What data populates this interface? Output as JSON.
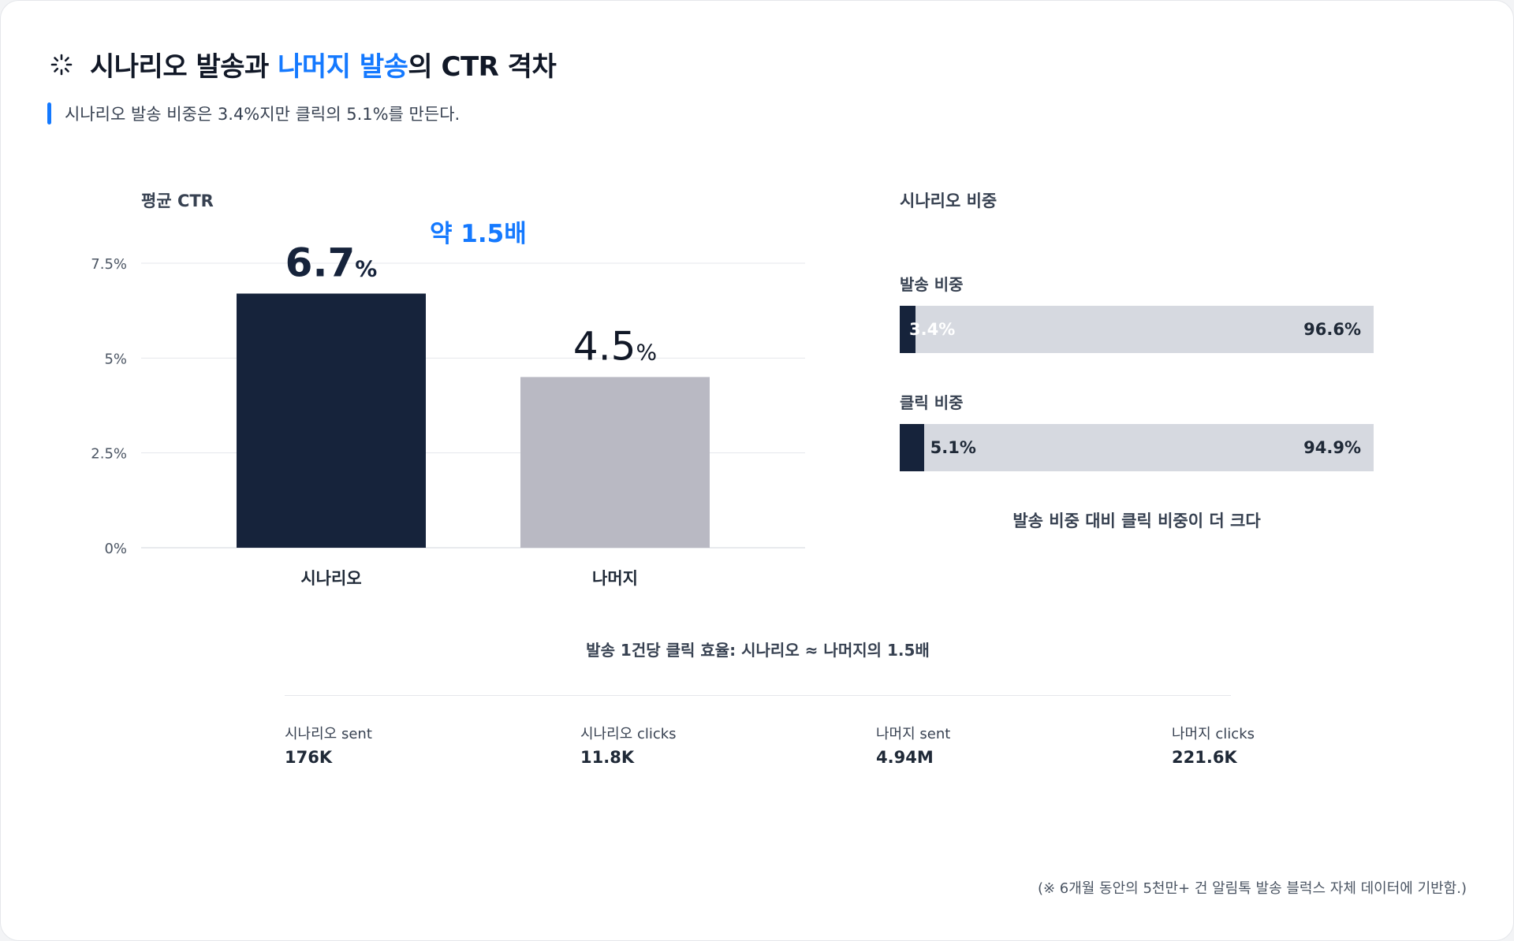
{
  "header": {
    "icon": "loader-icon",
    "title_part1": "시나리오 발송과 ",
    "title_highlight": "나머지 발송",
    "title_part2": "의 CTR 격차",
    "subtitle": "시나리오 발송 비중은 3.4%지만 클릭의 5.1%를 만든다.",
    "accent_color": "#1479ff"
  },
  "ctr_section": {
    "label": "평균 CTR",
    "multiplier": "약 1.5배"
  },
  "share_section": {
    "label": "시나리오 비중",
    "rows": [
      {
        "label": "발송 비중",
        "scenario_pct": 3.4,
        "scenario_text": "3.4%",
        "rest_text": "96.6%"
      },
      {
        "label": "클릭 비중",
        "scenario_pct": 5.1,
        "scenario_text": "5.1%",
        "rest_text": "94.9%"
      }
    ],
    "caption": "발송 비중 대비 클릭 비중이 더 크다"
  },
  "efficiency": "발송 1건당 클릭 효율: 시나리오 ≈ 나머지의 1.5배",
  "stats": [
    {
      "label": "시나리오 sent",
      "value": "176K"
    },
    {
      "label": "시나리오 clicks",
      "value": "11.8K"
    },
    {
      "label": "나머지 sent",
      "value": "4.94M"
    },
    {
      "label": "나머지 clicks",
      "value": "221.6K"
    }
  ],
  "footnote": "(※ 6개월 동안의 5천만+ 건 알림톡 발송 블럭스 자체 데이터에 기반함.)",
  "chart_data": {
    "type": "bar",
    "categories": [
      "시나리오",
      "나머지"
    ],
    "values": [
      6.7,
      4.5
    ],
    "value_labels": [
      "6.7",
      "4.5"
    ],
    "value_unit": "%",
    "ylim": [
      0,
      8
    ],
    "yticks": [
      0,
      2.5,
      5,
      7.5
    ],
    "ytick_labels": [
      "0%",
      "2.5%",
      "5%",
      "7.5%"
    ],
    "colors": [
      "#16233b",
      "#b9b9c3"
    ],
    "grid": true
  }
}
